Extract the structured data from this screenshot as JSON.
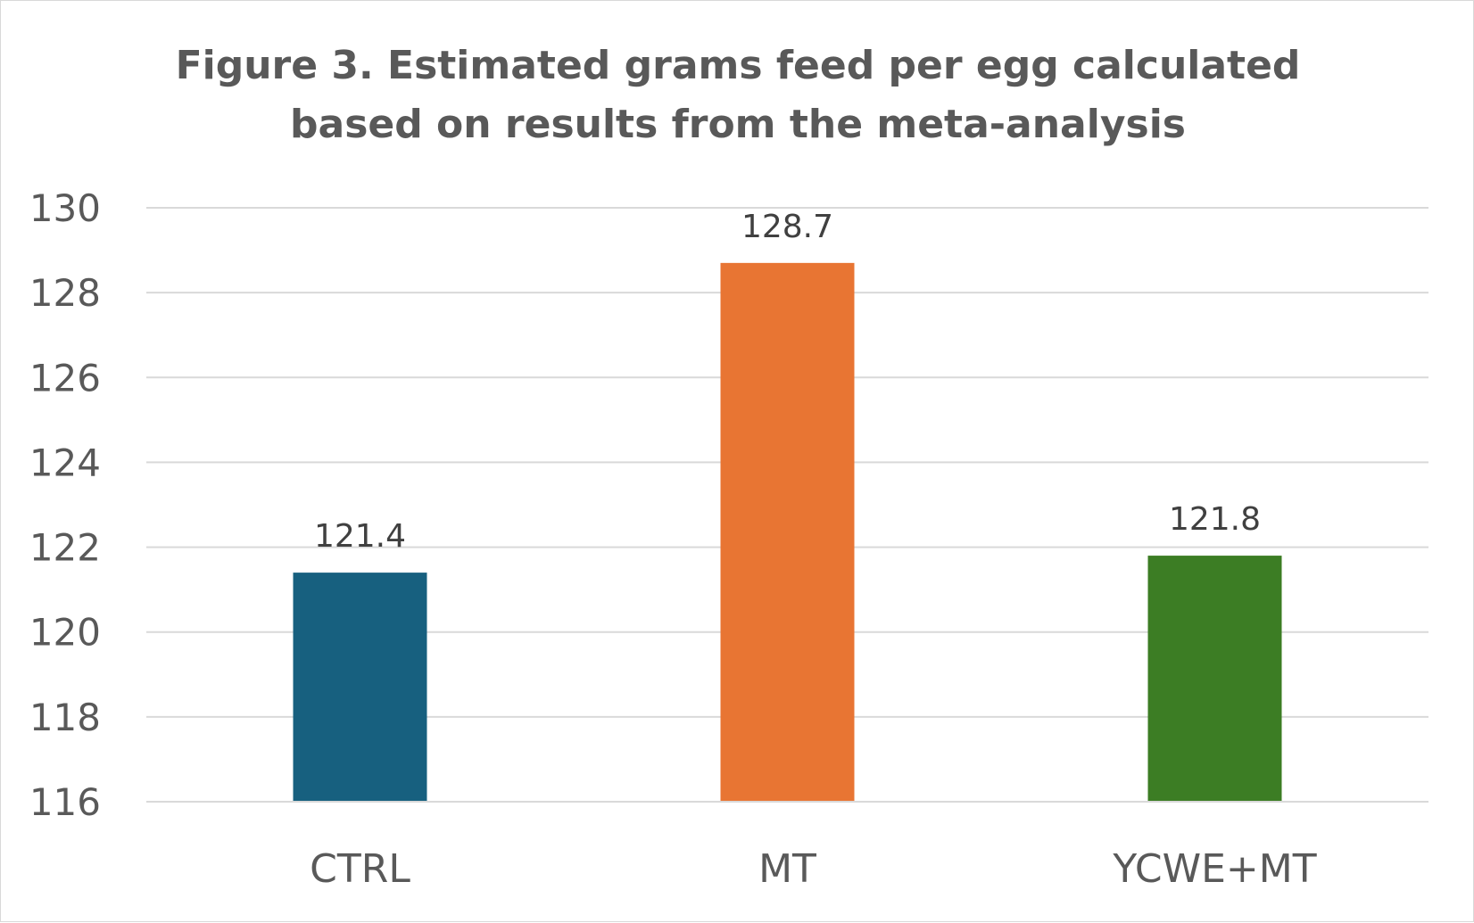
{
  "chart_data": {
    "type": "bar",
    "title_lines": [
      "Figure 3. Estimated grams feed per egg calculated",
      "based on results from the meta-analysis"
    ],
    "categories": [
      "CTRL",
      "MT",
      "YCWE+MT"
    ],
    "values": [
      121.4,
      128.7,
      121.8
    ],
    "data_labels": [
      "121.4",
      "128.7",
      "121.8"
    ],
    "colors": [
      "#17607f",
      "#e87533",
      "#3c7d24"
    ],
    "ylim": [
      116,
      130
    ],
    "yticks": [
      116,
      118,
      120,
      122,
      124,
      126,
      128,
      130
    ],
    "xlabel": "",
    "ylabel": "",
    "grid": true,
    "legend": "none"
  }
}
